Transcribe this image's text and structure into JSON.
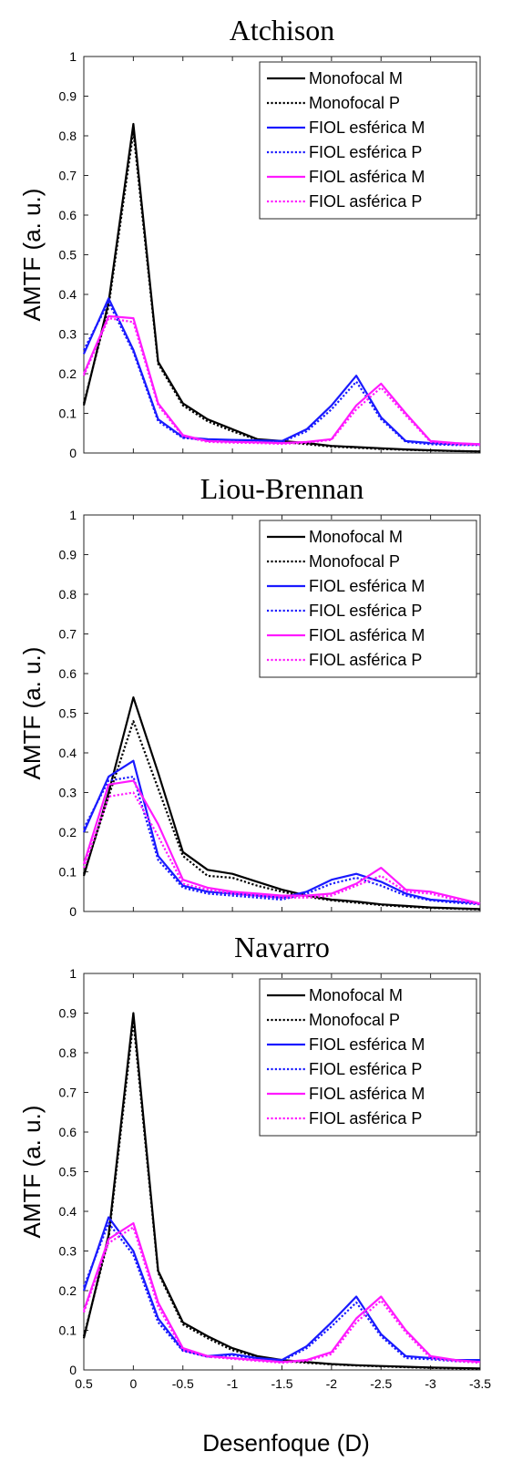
{
  "figure": {
    "xlabel": "Desenfoque (D)"
  },
  "chart_data": [
    {
      "type": "line",
      "title": "Atchison",
      "ylabel": "AMTF (a. u.)",
      "xlabel": "",
      "xlim": [
        0.5,
        -3.5
      ],
      "ylim": [
        0,
        1
      ],
      "x_reversed": true,
      "xticks": [
        0.5,
        0,
        -0.5,
        -1,
        -1.5,
        -2,
        -2.5,
        -3,
        -3.5
      ],
      "yticks": [
        0,
        0.1,
        0.2,
        0.3,
        0.4,
        0.5,
        0.6,
        0.7,
        0.8,
        0.9,
        1
      ],
      "show_xtick_labels": false,
      "legend_position": "top-right",
      "x": [
        0.5,
        0.25,
        0,
        -0.25,
        -0.5,
        -0.75,
        -1,
        -1.25,
        -1.5,
        -1.75,
        -2,
        -2.25,
        -2.5,
        -2.75,
        -3,
        -3.25,
        -3.5
      ],
      "series": [
        {
          "name": "Monofocal M",
          "color": "#000000",
          "style": "solid",
          "values": [
            0.12,
            0.38,
            0.83,
            0.23,
            0.125,
            0.085,
            0.06,
            0.035,
            0.03,
            0.025,
            0.018,
            0.015,
            0.012,
            0.009,
            0.007,
            0.005,
            0.004
          ]
        },
        {
          "name": "Monofocal P",
          "color": "#000000",
          "style": "dotted",
          "values": [
            0.125,
            0.37,
            0.81,
            0.225,
            0.12,
            0.08,
            0.055,
            0.033,
            0.028,
            0.022,
            0.016,
            0.013,
            0.01,
            0.008,
            0.006,
            0.005,
            0.004
          ]
        },
        {
          "name": "FIOL esférica M",
          "color": "#1a1aff",
          "style": "solid",
          "values": [
            0.25,
            0.39,
            0.26,
            0.085,
            0.04,
            0.035,
            0.033,
            0.032,
            0.03,
            0.06,
            0.12,
            0.195,
            0.09,
            0.03,
            0.025,
            0.022,
            0.022
          ]
        },
        {
          "name": "FIOL esférica P",
          "color": "#1a1aff",
          "style": "dotted",
          "values": [
            0.26,
            0.38,
            0.255,
            0.08,
            0.038,
            0.033,
            0.031,
            0.03,
            0.028,
            0.055,
            0.11,
            0.18,
            0.085,
            0.028,
            0.022,
            0.02,
            0.02
          ]
        },
        {
          "name": "FIOL asférica M",
          "color": "#ff1aff",
          "style": "solid",
          "values": [
            0.2,
            0.345,
            0.34,
            0.125,
            0.045,
            0.03,
            0.028,
            0.027,
            0.025,
            0.028,
            0.035,
            0.12,
            0.175,
            0.1,
            0.03,
            0.025,
            0.022
          ]
        },
        {
          "name": "FIOL asférica P",
          "color": "#ff1aff",
          "style": "dotted",
          "values": [
            0.195,
            0.34,
            0.33,
            0.12,
            0.042,
            0.028,
            0.026,
            0.025,
            0.023,
            0.026,
            0.033,
            0.11,
            0.165,
            0.095,
            0.028,
            0.022,
            0.02
          ]
        }
      ]
    },
    {
      "type": "line",
      "title": "Liou-Brennan",
      "ylabel": "AMTF (a. u.)",
      "xlabel": "",
      "xlim": [
        0.5,
        -3.5
      ],
      "ylim": [
        0,
        1
      ],
      "x_reversed": true,
      "xticks": [
        0.5,
        0,
        -0.5,
        -1,
        -1.5,
        -2,
        -2.5,
        -3,
        -3.5
      ],
      "yticks": [
        0,
        0.1,
        0.2,
        0.3,
        0.4,
        0.5,
        0.6,
        0.7,
        0.8,
        0.9,
        1
      ],
      "show_xtick_labels": false,
      "legend_position": "top-right",
      "x": [
        0.5,
        0.25,
        0,
        -0.25,
        -0.5,
        -0.75,
        -1,
        -1.25,
        -1.5,
        -1.75,
        -2,
        -2.25,
        -2.5,
        -2.75,
        -3,
        -3.25,
        -3.5
      ],
      "series": [
        {
          "name": "Monofocal M",
          "color": "#000000",
          "style": "solid",
          "values": [
            0.09,
            0.3,
            0.54,
            0.35,
            0.15,
            0.105,
            0.095,
            0.075,
            0.055,
            0.04,
            0.03,
            0.025,
            0.018,
            0.014,
            0.01,
            0.008,
            0.006
          ]
        },
        {
          "name": "Monofocal P",
          "color": "#000000",
          "style": "dotted",
          "values": [
            0.095,
            0.29,
            0.48,
            0.31,
            0.14,
            0.09,
            0.085,
            0.065,
            0.05,
            0.037,
            0.028,
            0.022,
            0.016,
            0.012,
            0.009,
            0.007,
            0.005
          ]
        },
        {
          "name": "FIOL esférica M",
          "color": "#1a1aff",
          "style": "solid",
          "values": [
            0.2,
            0.34,
            0.38,
            0.14,
            0.065,
            0.05,
            0.045,
            0.04,
            0.035,
            0.05,
            0.08,
            0.095,
            0.075,
            0.045,
            0.03,
            0.025,
            0.02
          ]
        },
        {
          "name": "FIOL esférica P",
          "color": "#1a1aff",
          "style": "dotted",
          "values": [
            0.21,
            0.33,
            0.34,
            0.13,
            0.06,
            0.045,
            0.04,
            0.035,
            0.03,
            0.045,
            0.07,
            0.085,
            0.065,
            0.04,
            0.028,
            0.022,
            0.018
          ]
        },
        {
          "name": "FIOL asférica M",
          "color": "#ff1aff",
          "style": "solid",
          "values": [
            0.12,
            0.32,
            0.33,
            0.22,
            0.08,
            0.06,
            0.05,
            0.045,
            0.04,
            0.04,
            0.045,
            0.07,
            0.11,
            0.055,
            0.05,
            0.035,
            0.02
          ]
        },
        {
          "name": "FIOL asférica P",
          "color": "#ff1aff",
          "style": "dotted",
          "values": [
            0.11,
            0.29,
            0.3,
            0.19,
            0.07,
            0.055,
            0.045,
            0.04,
            0.035,
            0.035,
            0.04,
            0.065,
            0.09,
            0.05,
            0.045,
            0.03,
            0.018
          ]
        }
      ]
    },
    {
      "type": "line",
      "title": "Navarro",
      "ylabel": "AMTF (a. u.)",
      "xlabel": "Desenfoque (D)",
      "xlim": [
        0.5,
        -3.5
      ],
      "ylim": [
        0,
        1
      ],
      "x_reversed": true,
      "xticks": [
        0.5,
        0,
        -0.5,
        -1,
        -1.5,
        -2,
        -2.5,
        -3,
        -3.5
      ],
      "xtick_labels": [
        "0.5",
        "0",
        "-0.5",
        "-1",
        "-1.5",
        "-2",
        "-2.5",
        "-3",
        "-3.5"
      ],
      "yticks": [
        0,
        0.1,
        0.2,
        0.3,
        0.4,
        0.5,
        0.6,
        0.7,
        0.8,
        0.9,
        1
      ],
      "show_xtick_labels": true,
      "legend_position": "top-right",
      "x": [
        0.5,
        0.25,
        0,
        -0.25,
        -0.5,
        -0.75,
        -1,
        -1.25,
        -1.5,
        -1.75,
        -2,
        -2.25,
        -2.5,
        -2.75,
        -3,
        -3.25,
        -3.5
      ],
      "series": [
        {
          "name": "Monofocal M",
          "color": "#000000",
          "style": "solid",
          "values": [
            0.08,
            0.34,
            0.9,
            0.25,
            0.12,
            0.085,
            0.055,
            0.035,
            0.025,
            0.02,
            0.015,
            0.012,
            0.01,
            0.008,
            0.006,
            0.005,
            0.004
          ]
        },
        {
          "name": "Monofocal P",
          "color": "#000000",
          "style": "dotted",
          "values": [
            0.085,
            0.33,
            0.88,
            0.245,
            0.115,
            0.08,
            0.05,
            0.033,
            0.023,
            0.018,
            0.014,
            0.011,
            0.009,
            0.007,
            0.005,
            0.004,
            0.003
          ]
        },
        {
          "name": "FIOL esférica M",
          "color": "#1a1aff",
          "style": "solid",
          "values": [
            0.2,
            0.385,
            0.3,
            0.13,
            0.05,
            0.035,
            0.04,
            0.03,
            0.025,
            0.06,
            0.12,
            0.185,
            0.09,
            0.035,
            0.03,
            0.025,
            0.025
          ]
        },
        {
          "name": "FIOL esférica P",
          "color": "#1a1aff",
          "style": "dotted",
          "values": [
            0.21,
            0.37,
            0.29,
            0.12,
            0.048,
            0.033,
            0.037,
            0.028,
            0.023,
            0.055,
            0.11,
            0.17,
            0.085,
            0.03,
            0.027,
            0.022,
            0.022
          ]
        },
        {
          "name": "FIOL asférica M",
          "color": "#ff1aff",
          "style": "solid",
          "values": [
            0.15,
            0.33,
            0.37,
            0.17,
            0.055,
            0.035,
            0.03,
            0.025,
            0.02,
            0.025,
            0.045,
            0.13,
            0.185,
            0.1,
            0.035,
            0.025,
            0.02
          ]
        },
        {
          "name": "FIOL asférica P",
          "color": "#ff1aff",
          "style": "dotted",
          "values": [
            0.145,
            0.32,
            0.36,
            0.16,
            0.05,
            0.033,
            0.028,
            0.023,
            0.018,
            0.023,
            0.04,
            0.12,
            0.175,
            0.095,
            0.03,
            0.022,
            0.018
          ]
        }
      ]
    }
  ]
}
